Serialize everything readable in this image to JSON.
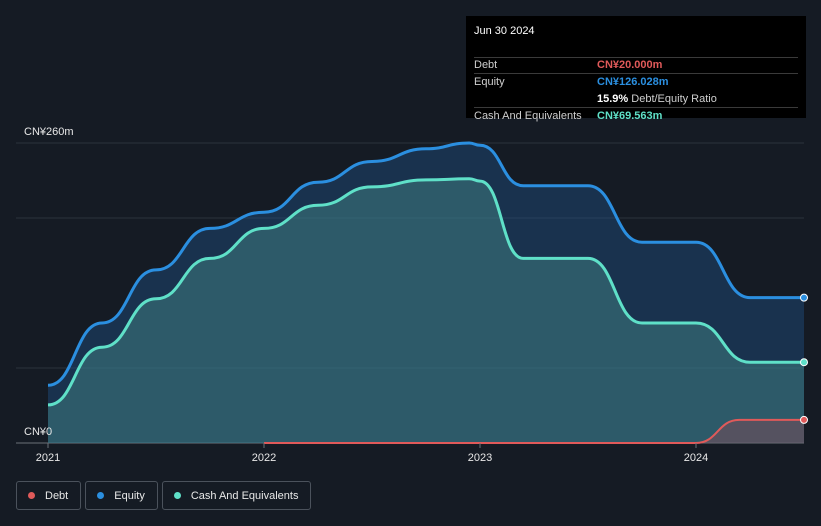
{
  "tooltip": {
    "date": "Jun 30 2024",
    "debt_label": "Debt",
    "debt_value": "CN¥20.000m",
    "equity_label": "Equity",
    "equity_value": "CN¥126.028m",
    "ratio_value": "15.9%",
    "ratio_label": "Debt/Equity Ratio",
    "cash_label": "Cash And Equivalents",
    "cash_value": "CN¥69.563m"
  },
  "legend": {
    "debt": "Debt",
    "equity": "Equity",
    "cash": "Cash And Equivalents"
  },
  "colors": {
    "debt": "#e05a5a",
    "equity": "#2b8fe0",
    "cash": "#5fe0c8",
    "background": "#151b24"
  },
  "chart_data": {
    "type": "area",
    "y_top_label": "CN¥260m",
    "y_zero_label": "CN¥0",
    "ylim": [
      0,
      260
    ],
    "x_ticks": [
      "2021",
      "2022",
      "2023",
      "2024"
    ],
    "x_tick_values": [
      2021.0,
      2022.0,
      2023.0,
      2024.0
    ],
    "xlim": [
      2021.0,
      2024.5
    ],
    "grid": true,
    "legend_position": "bottom-left",
    "series": [
      {
        "name": "Equity",
        "key": "equity",
        "x": [
          2021.0,
          2021.25,
          2021.5,
          2021.75,
          2022.0,
          2022.25,
          2022.5,
          2022.75,
          2022.95,
          2023.0,
          2023.2,
          2023.5,
          2023.75,
          2024.0,
          2024.25,
          2024.5
        ],
        "y": [
          50,
          104,
          150,
          186,
          200,
          226,
          244,
          255,
          260,
          258,
          223,
          223,
          174,
          174,
          126,
          126
        ]
      },
      {
        "name": "Cash And Equivalents",
        "key": "cash",
        "x": [
          2021.0,
          2021.25,
          2021.5,
          2021.75,
          2022.0,
          2022.25,
          2022.5,
          2022.75,
          2022.95,
          2023.0,
          2023.2,
          2023.5,
          2023.75,
          2024.0,
          2024.25,
          2024.5
        ],
        "y": [
          33,
          83,
          125,
          160,
          186,
          206,
          222,
          228,
          229,
          227,
          160,
          160,
          104,
          104,
          70,
          70
        ]
      },
      {
        "name": "Debt",
        "key": "debt",
        "x": [
          2022.0,
          2022.5,
          2023.0,
          2023.5,
          2024.0,
          2024.2,
          2024.5
        ],
        "y": [
          0,
          0,
          0,
          0,
          0,
          20,
          20
        ]
      }
    ]
  }
}
